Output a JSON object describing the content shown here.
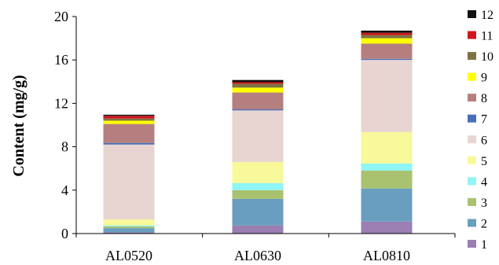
{
  "chart_data": {
    "type": "bar",
    "stacked": true,
    "title": "",
    "xlabel": "",
    "ylabel": "Content (mg/g)",
    "ylim": [
      0,
      20
    ],
    "yticks": [
      0,
      4,
      8,
      12,
      16,
      20
    ],
    "grid": false,
    "legend_position": "right",
    "categories": [
      "AL0520",
      "AL0630",
      "AL0810"
    ],
    "series": [
      {
        "name": "1",
        "color": "#9b7fb3",
        "values": [
          0.1,
          0.75,
          1.1
        ]
      },
      {
        "name": "2",
        "color": "#6a9ec0",
        "values": [
          0.4,
          2.45,
          3.05
        ]
      },
      {
        "name": "3",
        "color": "#a9c26f",
        "values": [
          0.15,
          0.8,
          1.65
        ]
      },
      {
        "name": "4",
        "color": "#8ff5f5",
        "values": [
          0.1,
          0.65,
          0.65
        ]
      },
      {
        "name": "5",
        "color": "#f7f99a",
        "values": [
          0.55,
          1.95,
          2.9
        ]
      },
      {
        "name": "6",
        "color": "#e8d5d2",
        "values": [
          6.9,
          4.75,
          6.65
        ]
      },
      {
        "name": "7",
        "color": "#4a6fb8",
        "values": [
          0.15,
          0.1,
          0.1
        ]
      },
      {
        "name": "8",
        "color": "#b57f7f",
        "values": [
          1.75,
          1.55,
          1.4
        ]
      },
      {
        "name": "9",
        "color": "#ffff00",
        "values": [
          0.3,
          0.45,
          0.5
        ]
      },
      {
        "name": "10",
        "color": "#7d7345",
        "values": [
          0.2,
          0.35,
          0.3
        ]
      },
      {
        "name": "11",
        "color": "#d0161d",
        "values": [
          0.25,
          0.15,
          0.2
        ]
      },
      {
        "name": "12",
        "color": "#111111",
        "values": [
          0.1,
          0.2,
          0.2
        ]
      }
    ]
  }
}
